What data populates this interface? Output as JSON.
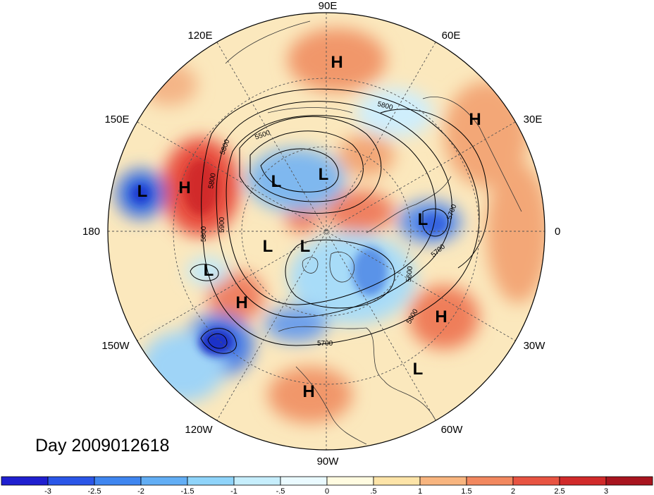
{
  "title": "Day 2009012618",
  "map": {
    "projection": "north-polar-stereographic",
    "longitude_labels": [
      "90E",
      "60E",
      "30E",
      "0",
      "30W",
      "60W",
      "90W",
      "120W",
      "150W",
      "180",
      "150E",
      "120E"
    ],
    "contour_labels": [
      "5500",
      "5800",
      "5800",
      "5900",
      "5800",
      "5800",
      "5700",
      "5600",
      "5700",
      "5800",
      "5700"
    ],
    "pressure_centers": [
      {
        "type": "H"
      },
      {
        "type": "H"
      },
      {
        "type": "L"
      },
      {
        "type": "H"
      },
      {
        "type": "L"
      },
      {
        "type": "L"
      },
      {
        "type": "L"
      },
      {
        "type": "L"
      },
      {
        "type": "L"
      },
      {
        "type": "L"
      },
      {
        "type": "H"
      },
      {
        "type": "H"
      },
      {
        "type": "L"
      },
      {
        "type": "H"
      }
    ]
  },
  "colorbar": {
    "ticks": [
      "-3",
      "-2.5",
      "-2",
      "-1.5",
      "-1",
      "-.5",
      "0",
      ".5",
      "1",
      "1.5",
      "2",
      "2.5",
      "3"
    ],
    "colors": [
      "#1f1fd0",
      "#2a56e8",
      "#3f86f0",
      "#62aef5",
      "#8fd4fa",
      "#c6eefc",
      "#eafaff",
      "#fffbe0",
      "#fde4a8",
      "#f8b57f",
      "#f2885f",
      "#e85442",
      "#d12a2a",
      "#a8141e"
    ]
  }
}
